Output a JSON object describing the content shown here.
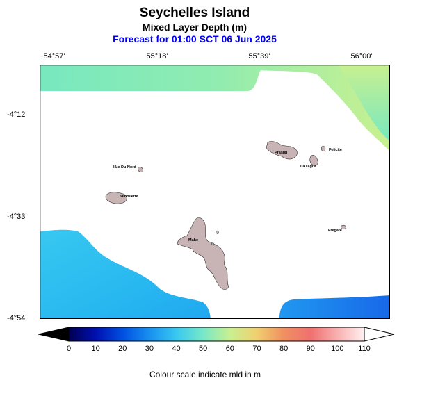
{
  "header": {
    "title": "Seychelles Island",
    "subtitle": "Mixed Layer Depth (m)",
    "forecast": "Forecast for  01:00 SCT 06 Jun 2025"
  },
  "axes": {
    "lon_labels": [
      "54°57'",
      "55°18'",
      "55°39'",
      "56°00'"
    ],
    "lat_labels": [
      "-4°12'",
      "-4°33'",
      "-4°54'"
    ]
  },
  "islands": {
    "mahe": "Mahe",
    "praslin": "Praslin",
    "la_digue": "La Digue",
    "felicite": "Felicite",
    "silhouette": "Silhouette",
    "ile_du_nord": "I.Le Du Nord",
    "fregate": "Fregate"
  },
  "colorbar": {
    "ticks": [
      "0",
      "10",
      "20",
      "30",
      "40",
      "50",
      "60",
      "70",
      "80",
      "90",
      "100",
      "110"
    ],
    "caption": "Colour scale indicate mld in m",
    "colors": [
      "#000050",
      "#0010b0",
      "#0050e0",
      "#1890f0",
      "#38c8f0",
      "#78e8c8",
      "#c8f090",
      "#f0d070",
      "#f09060",
      "#f07070",
      "#f8b0b0",
      "#fff0f0"
    ]
  }
}
